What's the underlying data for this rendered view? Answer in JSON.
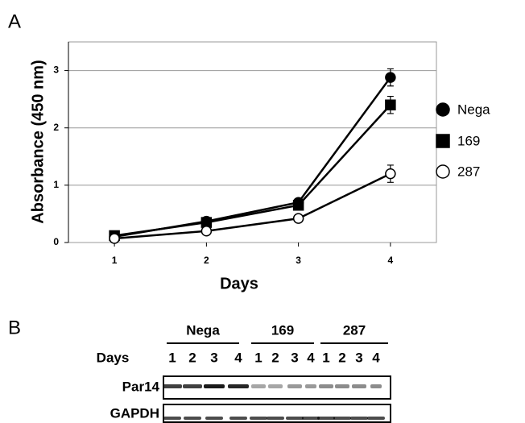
{
  "panels": [
    "A",
    "B"
  ],
  "chart_data": {
    "type": "line",
    "x_label": "Days",
    "y_label": "Absorbance (450 nm)",
    "x": [
      1,
      2,
      3,
      4
    ],
    "xlim": [
      0.5,
      4.5
    ],
    "xticks": [
      1,
      2,
      3,
      4
    ],
    "ylim": [
      0,
      3.5
    ],
    "yticks": [
      0,
      1,
      2,
      3
    ],
    "grid": true,
    "series": [
      {
        "name": "Nega",
        "color": "#000000",
        "marker": "circle",
        "fill": "#000000",
        "values": [
          0.1,
          0.37,
          0.7,
          2.88
        ],
        "errors": [
          0.02,
          0.03,
          0.04,
          0.15
        ]
      },
      {
        "name": "169",
        "color": "#000000",
        "marker": "square",
        "fill": "#000000",
        "values": [
          0.12,
          0.35,
          0.65,
          2.4
        ],
        "errors": [
          0.02,
          0.03,
          0.04,
          0.15
        ]
      },
      {
        "name": "287",
        "color": "#000000",
        "marker": "circle",
        "fill": "#ffffff",
        "values": [
          0.07,
          0.2,
          0.42,
          1.2
        ],
        "errors": [
          0.01,
          0.02,
          0.03,
          0.15
        ]
      }
    ]
  },
  "blot": {
    "days_label": "Days",
    "groups": [
      {
        "label": "Nega",
        "lanes": [
          "1",
          "2",
          "3",
          "4"
        ]
      },
      {
        "label": "169",
        "lanes": [
          "1",
          "2",
          "3",
          "4"
        ]
      },
      {
        "label": "287",
        "lanes": [
          "1",
          "2",
          "3",
          "4"
        ]
      }
    ],
    "rows": [
      "Par14",
      "GAPDH"
    ]
  }
}
